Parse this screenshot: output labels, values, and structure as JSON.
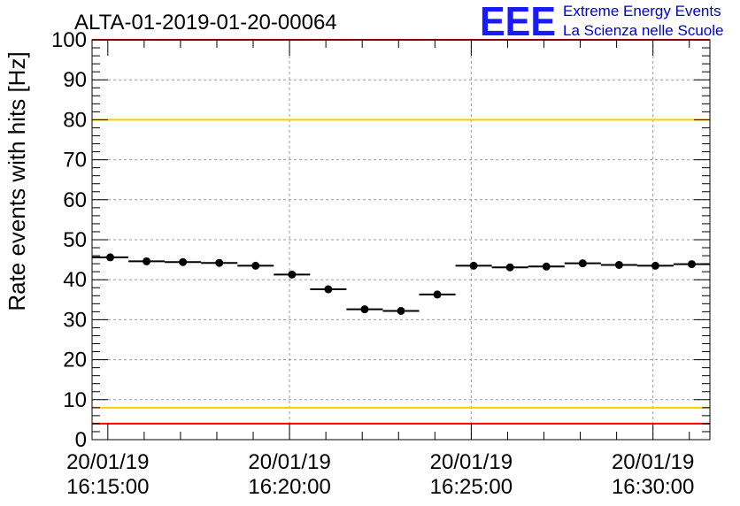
{
  "chart_data": {
    "type": "scatter",
    "title": "ALTA-01-2019-01-20-00064",
    "ylabel": "Rate events with hits [Hz]",
    "xlabel": "",
    "ylim": [
      0,
      100
    ],
    "y_ticks": [
      "0",
      "10",
      "20",
      "30",
      "40",
      "50",
      "60",
      "70",
      "80",
      "90",
      "100"
    ],
    "x_ticks": [
      {
        "date": "20/01/19",
        "time": "16:15:00"
      },
      {
        "date": "20/01/19",
        "time": "16:20:00"
      },
      {
        "date": "20/01/19",
        "time": "16:25:00"
      },
      {
        "date": "20/01/19",
        "time": "16:30:00"
      }
    ],
    "xlim": [
      "16:14:34",
      "16:31:34"
    ],
    "bin_width_s": 60,
    "grid": true,
    "points": [
      {
        "x": "16:15:04",
        "y": 45.6
      },
      {
        "x": "16:16:04",
        "y": 44.6
      },
      {
        "x": "16:17:04",
        "y": 44.4
      },
      {
        "x": "16:18:04",
        "y": 44.2
      },
      {
        "x": "16:19:04",
        "y": 43.5
      },
      {
        "x": "16:20:04",
        "y": 41.3
      },
      {
        "x": "16:21:04",
        "y": 37.6
      },
      {
        "x": "16:22:04",
        "y": 32.6
      },
      {
        "x": "16:23:04",
        "y": 32.2
      },
      {
        "x": "16:24:04",
        "y": 36.3
      },
      {
        "x": "16:25:04",
        "y": 43.5
      },
      {
        "x": "16:26:04",
        "y": 43.1
      },
      {
        "x": "16:27:04",
        "y": 43.3
      },
      {
        "x": "16:28:04",
        "y": 44.1
      },
      {
        "x": "16:29:04",
        "y": 43.7
      },
      {
        "x": "16:30:04",
        "y": 43.5
      },
      {
        "x": "16:31:04",
        "y": 43.9
      }
    ],
    "reference_lines": [
      {
        "y": 100,
        "color": "#ff0000"
      },
      {
        "y": 80,
        "color": "#ffcc00"
      },
      {
        "y": 8,
        "color": "#ffcc00"
      },
      {
        "y": 4,
        "color": "#ff0000"
      }
    ]
  },
  "logo": {
    "mark": "EEE",
    "line1": "Extreme Energy Events",
    "line2": "La Scienza nelle Scuole",
    "color": "#1a1aff"
  }
}
